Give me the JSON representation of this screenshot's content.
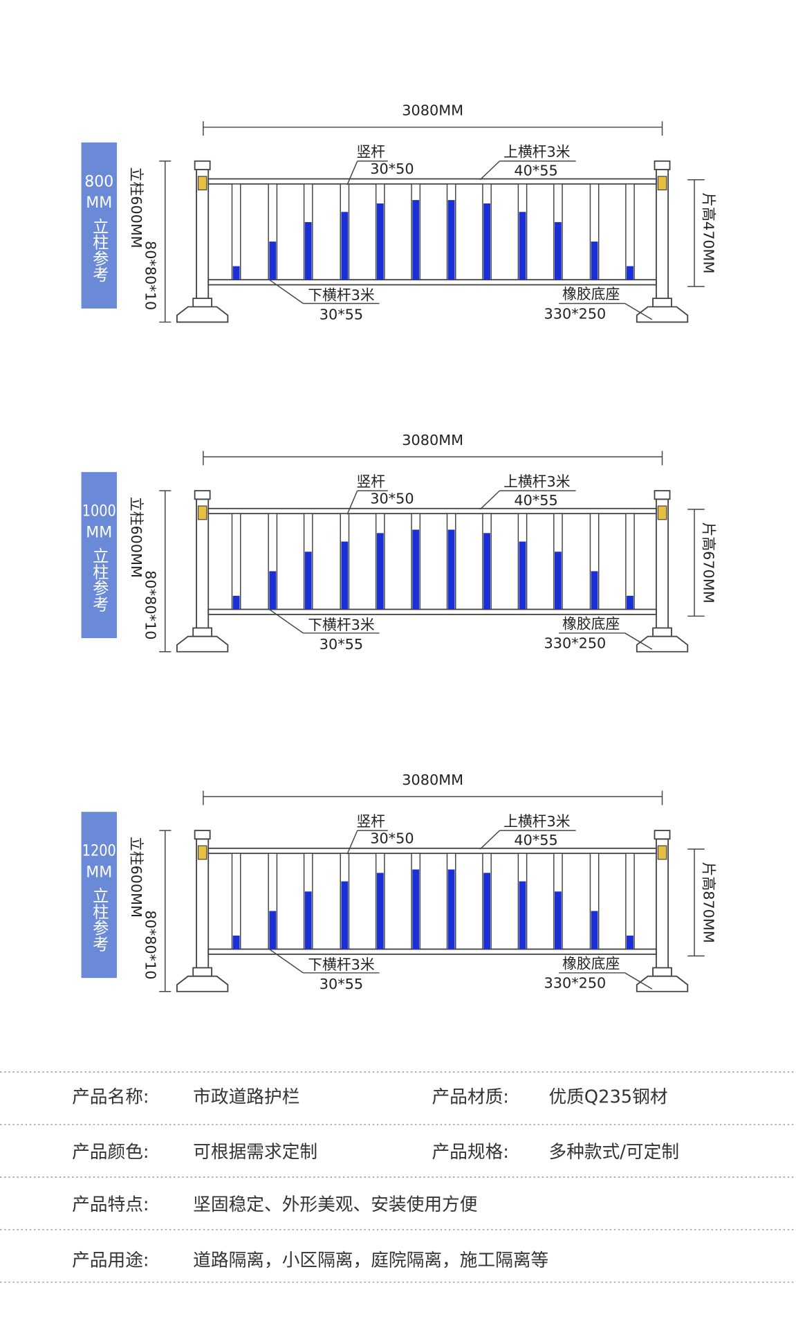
{
  "diagrams": [
    {
      "size": "800",
      "size_unit": "MM",
      "post_ref": "立柱参考",
      "width": "3080MM",
      "post_height": "立柱600MM",
      "post_spec": "80*80*10",
      "vertical_bar": "竖杆",
      "vertical_bar_spec": "30*50",
      "top_rail": "上横杆3米",
      "top_rail_spec": "40*55",
      "bottom_rail": "下横杆3米",
      "bottom_rail_spec": "30*55",
      "base": "橡胶底座",
      "base_spec": "330*250",
      "panel_height": "片高470MM"
    },
    {
      "size": "1000",
      "size_unit": "MM",
      "post_ref": "立柱参考",
      "width": "3080MM",
      "post_height": "立柱600MM",
      "post_spec": "80*80*10",
      "vertical_bar": "竖杆",
      "vertical_bar_spec": "30*50",
      "top_rail": "上横杆3米",
      "top_rail_spec": "40*55",
      "bottom_rail": "下横杆3米",
      "bottom_rail_spec": "30*55",
      "base": "橡胶底座",
      "base_spec": "330*250",
      "panel_height": "片高670MM"
    },
    {
      "size": "1200",
      "size_unit": "MM",
      "post_ref": "立柱参考",
      "width": "3080MM",
      "post_height": "立柱600MM",
      "post_spec": "80*80*10",
      "vertical_bar": "竖杆",
      "vertical_bar_spec": "30*50",
      "top_rail": "上横杆3米",
      "top_rail_spec": "40*55",
      "bottom_rail": "下横杆3米",
      "bottom_rail_spec": "30*55",
      "base": "橡胶底座",
      "base_spec": "330*250",
      "panel_height": "片高870MM"
    }
  ],
  "specs": {
    "rows": [
      [
        "产品名称:",
        "市政道路护栏",
        "产品材质:",
        "优质Q235钢材"
      ],
      [
        "产品颜色:",
        "可根据需求定制",
        "产品规格:",
        "多种款式/可定制"
      ],
      [
        "产品特点:",
        "坚固稳定、外形美观、安装使用方便"
      ],
      [
        "产品用途:",
        "道路隔离，小区隔离，庭院隔离，施工隔离等"
      ]
    ]
  }
}
